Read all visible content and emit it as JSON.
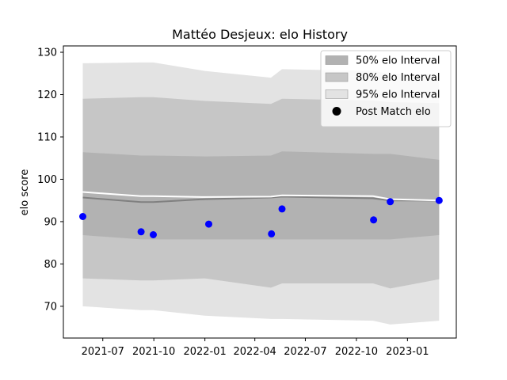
{
  "chart_data": {
    "type": "line",
    "title": "Mattéo Desjeux: elo History",
    "xlabel": "",
    "ylabel": "elo score",
    "xlim": [
      "2021-04-21",
      "2023-03-30"
    ],
    "ylim": [
      62.5,
      131.5
    ],
    "x_ticks": [
      "2021-07",
      "2021-10",
      "2022-01",
      "2022-04",
      "2022-07",
      "2022-10",
      "2023-01"
    ],
    "y_ticks": [
      70,
      80,
      90,
      100,
      110,
      120,
      130
    ],
    "grid": false,
    "legend_position": "top-right",
    "legend": [
      {
        "label": "50% elo Interval",
        "kind": "band",
        "color": "#b2b2b2"
      },
      {
        "label": "80% elo Interval",
        "kind": "band",
        "color": "#c6c6c6"
      },
      {
        "label": "95% elo Interval",
        "kind": "band",
        "color": "#e3e3e3"
      },
      {
        "label": "Post Match elo",
        "kind": "marker",
        "color": "#000000"
      }
    ],
    "band_dates": [
      "2021-05-26",
      "2021-09-08",
      "2021-09-30",
      "2022-01-01",
      "2022-04-30",
      "2022-05-20",
      "2022-10-31",
      "2022-12-01",
      "2023-02-27"
    ],
    "bands": [
      {
        "name": "95% elo Interval",
        "color": "#e3e3e3",
        "lower": [
          70.0,
          69.1,
          69.1,
          67.8,
          67.0,
          67.0,
          66.6,
          65.7,
          66.6
        ],
        "upper": [
          127.4,
          127.6,
          127.6,
          125.6,
          124.0,
          126.0,
          125.6,
          124.9,
          124.9
        ]
      },
      {
        "name": "80% elo Interval",
        "color": "#c6c6c6",
        "lower": [
          76.6,
          76.1,
          76.1,
          76.6,
          74.4,
          75.4,
          75.4,
          74.2,
          76.4
        ],
        "upper": [
          119.0,
          119.4,
          119.4,
          118.5,
          117.8,
          119.0,
          118.6,
          118.2,
          118.0
        ]
      },
      {
        "name": "50% elo Interval",
        "color": "#b2b2b2",
        "lower": [
          86.8,
          85.8,
          85.8,
          85.8,
          85.8,
          85.8,
          85.8,
          85.8,
          86.8
        ],
        "upper": [
          106.4,
          105.6,
          105.6,
          105.4,
          105.6,
          106.6,
          106.0,
          106.0,
          104.6
        ]
      }
    ],
    "mean_line": {
      "color": "#808080",
      "values": [
        95.7,
        94.6,
        94.6,
        95.3,
        95.7,
        95.9,
        95.5,
        95.0,
        95.0
      ]
    },
    "upper_line": {
      "color": "#ffffff",
      "values": [
        97.0,
        96.0,
        96.0,
        95.8,
        95.9,
        96.2,
        96.0,
        95.3,
        95.0
      ]
    },
    "points": {
      "name": "Post Match elo",
      "color": "#0000ff",
      "x": [
        "2021-05-26",
        "2021-09-08",
        "2021-09-30",
        "2022-01-08",
        "2022-05-01",
        "2022-05-20",
        "2022-11-01",
        "2022-12-01",
        "2023-02-27"
      ],
      "y": [
        91.2,
        87.6,
        86.9,
        89.4,
        87.1,
        93.0,
        90.4,
        94.7,
        95.0
      ]
    }
  }
}
